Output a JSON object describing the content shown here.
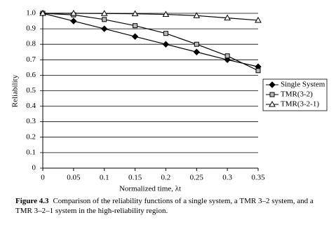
{
  "chart_data": {
    "type": "line",
    "y_label": "Reliability",
    "x_label": "Normalized time, λt",
    "x": [
      0,
      0.05,
      0.1,
      0.15,
      0.2,
      0.25,
      0.3,
      0.35
    ],
    "series": [
      {
        "name": "Single System",
        "color": "#000000",
        "marker": "diamond",
        "values": [
          1.0,
          0.95,
          0.9,
          0.85,
          0.8,
          0.75,
          0.7,
          0.655
        ]
      },
      {
        "name": "TMR(3-2)",
        "color": "#000000",
        "marker": "square",
        "values": [
          1.0,
          0.99,
          0.96,
          0.92,
          0.87,
          0.8,
          0.725,
          0.63
        ]
      },
      {
        "name": "TMR(3-2-1)",
        "color": "#000000",
        "marker": "triangle",
        "values": [
          1.0,
          1.0,
          0.999,
          0.997,
          0.993,
          0.985,
          0.97,
          0.955
        ]
      }
    ],
    "xlim": [
      0,
      0.35
    ],
    "xticks": [
      0,
      0.05,
      0.1,
      0.15,
      0.2,
      0.25,
      0.3,
      0.35
    ],
    "ylim": [
      0,
      1
    ],
    "yticks": [
      0,
      0.1,
      0.2,
      0.3,
      0.4,
      0.5,
      0.6,
      0.7,
      0.8,
      0.9,
      {
        "value": 1,
        "label": "1.0"
      }
    ],
    "grid": true,
    "legend": "right"
  },
  "caption": {
    "label": "Figure 4.3",
    "text": "Comparison of the reliability functions of a single system, a TMR 3–2 system, and a TMR 3–2–1 system in the high-reliability region."
  }
}
